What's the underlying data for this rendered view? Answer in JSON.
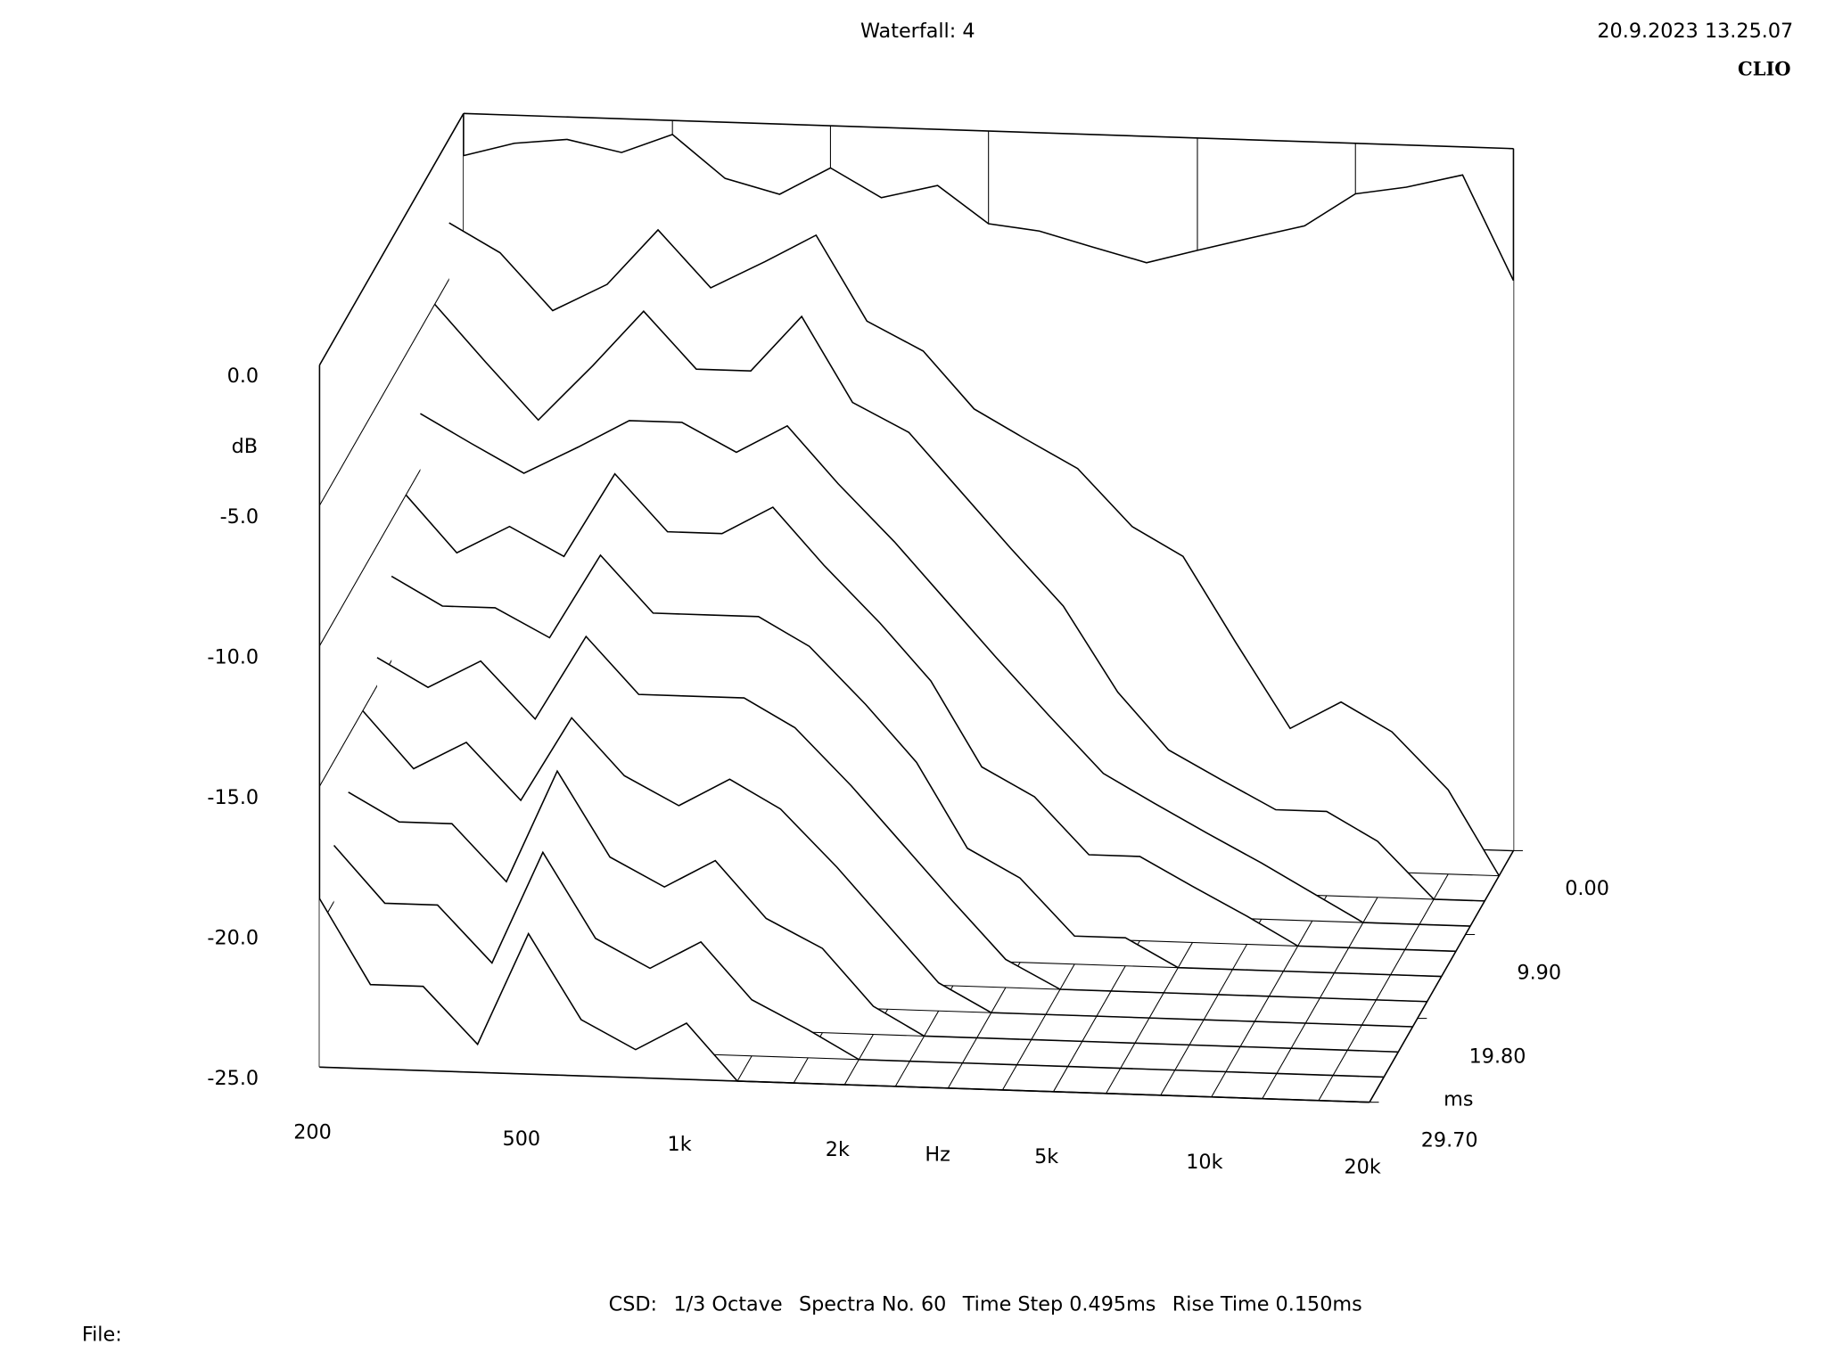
{
  "chart_data": {
    "type": "waterfall",
    "title": "Waterfall: 4",
    "timestamp": "20.9.2023 13.25.07",
    "brand": "CLIO",
    "x_label": "Hz",
    "y_label": "dB",
    "z_label": "ms",
    "color": "#000000",
    "log_x": true,
    "x": [
      200,
      250,
      315,
      400,
      500,
      630,
      800,
      1000,
      1250,
      1600,
      2000,
      2500,
      3150,
      4000,
      5000,
      6300,
      8000,
      10000,
      12500,
      16000,
      20000
    ],
    "xlim": [
      200,
      20000
    ],
    "xticks": [
      200,
      500,
      {
        "value": 1000,
        "label": "1k"
      },
      {
        "value": 2000,
        "label": "2k"
      },
      {
        "value": 5000,
        "label": "5k"
      },
      {
        "value": 10000,
        "label": "10k"
      },
      {
        "value": 20000,
        "label": "20k"
      }
    ],
    "ylim": [
      -25,
      0
    ],
    "yticks": [
      {
        "value": 0,
        "label": "0.0"
      },
      {
        "value": -5,
        "label": "-5.0"
      },
      {
        "value": -10,
        "label": "-10.0"
      },
      {
        "value": -15,
        "label": "-15.0"
      },
      {
        "value": -20,
        "label": "-20.0"
      },
      {
        "value": -25,
        "label": "-25.0"
      }
    ],
    "zlim": [
      0,
      29.7
    ],
    "zticks": [
      {
        "value": 0,
        "label": "0.00"
      },
      {
        "value": 9.9,
        "label": "9.90"
      },
      {
        "value": 19.8,
        "label": "19.80"
      },
      {
        "value": 29.7,
        "label": "29.70"
      }
    ],
    "series": [
      {
        "z": 0,
        "values": [
          -1.5,
          -1,
          -0.8,
          -1.2,
          -0.5,
          -2,
          -2.5,
          -1.5,
          -2.5,
          -2,
          -3.3,
          -3.5,
          -4,
          -4.5,
          -4,
          -3.5,
          -3,
          -1.8,
          -1.5,
          -1,
          -4.7
        ]
      },
      {
        "z": 2.97,
        "values": [
          -3,
          -4,
          -6,
          -5,
          -3,
          -5,
          -4,
          -3,
          -6,
          -7,
          -9,
          -10,
          -11,
          -13,
          -14,
          -17,
          -20,
          -19,
          -20,
          -22,
          -25
        ]
      },
      {
        "z": 5.94,
        "values": [
          -5,
          -7,
          -9,
          -7,
          -5,
          -7,
          -7,
          -5,
          -8,
          -9,
          -11,
          -13,
          -15,
          -18,
          -20,
          -21,
          -22,
          -22,
          -23,
          -25,
          -25
        ]
      },
      {
        "z": 8.91,
        "values": [
          -8,
          -9,
          -10,
          -9,
          -8,
          -8,
          -9,
          -8,
          -10,
          -12,
          -14,
          -16,
          -18,
          -20,
          -21,
          -22,
          -23,
          -24,
          -25,
          -25,
          -25
        ]
      },
      {
        "z": 11.88,
        "values": [
          -10,
          -12,
          -11,
          -12,
          -9,
          -11,
          -11,
          -10,
          -12,
          -14,
          -16,
          -19,
          -20,
          -22,
          -22,
          -23,
          -24,
          -25,
          -25,
          -25,
          -25
        ]
      },
      {
        "z": 14.85,
        "values": [
          -12,
          -13,
          -13,
          -14,
          -11,
          -13,
          -13,
          -13,
          -14,
          -16,
          -18,
          -21,
          -22,
          -24,
          -24,
          -25,
          -25,
          -25,
          -25,
          -25,
          -25
        ]
      },
      {
        "z": 17.82,
        "values": [
          -14,
          -15,
          -14,
          -16,
          -13,
          -15,
          -15,
          -15,
          -16,
          -18,
          -20,
          -22,
          -24,
          -25,
          -25,
          -25,
          -25,
          -25,
          -25,
          -25,
          -25
        ]
      },
      {
        "z": 20.79,
        "values": [
          -15,
          -17,
          -16,
          -18,
          -15,
          -17,
          -18,
          -17,
          -18,
          -20,
          -22,
          -24,
          -25,
          -25,
          -25,
          -25,
          -25,
          -25,
          -25,
          -25,
          -25
        ]
      },
      {
        "z": 23.76,
        "values": [
          -17,
          -18,
          -18,
          -20,
          -16,
          -19,
          -20,
          -19,
          -21,
          -22,
          -24,
          -25,
          -25,
          -25,
          -25,
          -25,
          -25,
          -25,
          -25,
          -25,
          -25
        ]
      },
      {
        "z": 26.73,
        "values": [
          -18,
          -20,
          -20,
          -22,
          -18,
          -21,
          -22,
          -21,
          -23,
          -24,
          -25,
          -25,
          -25,
          -25,
          -25,
          -25,
          -25,
          -25,
          -25,
          -25,
          -25
        ]
      },
      {
        "z": 29.7,
        "values": [
          -19,
          -22,
          -22,
          -24,
          -20,
          -23,
          -24,
          -23,
          -25,
          -25,
          -25,
          -25,
          -25,
          -25,
          -25,
          -25,
          -25,
          -25,
          -25,
          -25,
          -25
        ]
      }
    ],
    "footer": [
      "CSD:",
      "1/3 Octave",
      "Spectra No. 60",
      "Time Step 0.495ms",
      "Rise Time 0.150ms"
    ],
    "file_label": "File:"
  }
}
